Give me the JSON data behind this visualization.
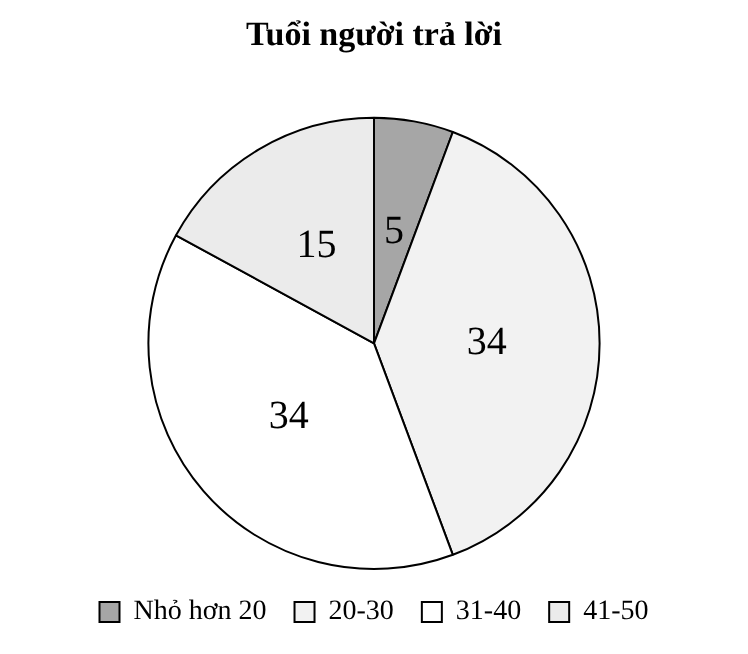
{
  "chart_data": {
    "type": "pie",
    "title": "Tuổi người trả lời",
    "categories": [
      "Nhỏ hơn 20",
      "20-30",
      "31-40",
      "41-50"
    ],
    "values": [
      5,
      34,
      34,
      15
    ],
    "colors": [
      "#a6a6a6",
      "#f2f2f2",
      "#ffffff",
      "#ebebeb"
    ],
    "data_labels": true,
    "legend": "bottom"
  }
}
